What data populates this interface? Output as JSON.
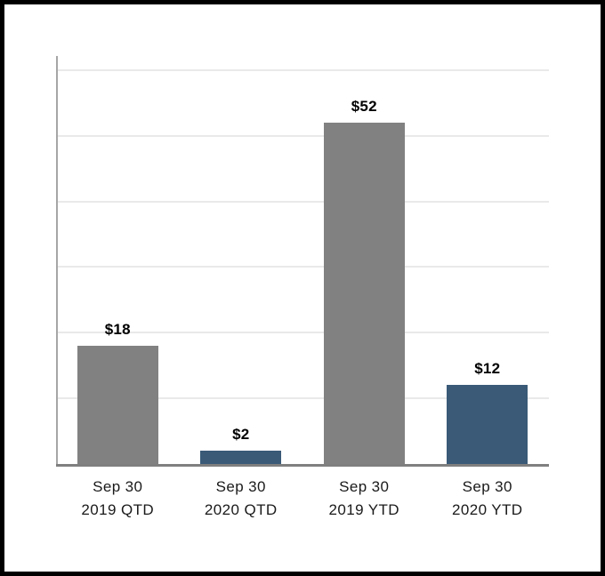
{
  "frame": {
    "border_color": "#000000",
    "background": "#FFFFFF"
  },
  "chart_data": {
    "type": "bar",
    "title": "",
    "xlabel": "",
    "ylabel": "",
    "categories": [
      "Sep 30 2019 QTD",
      "Sep 30 2020 QTD",
      "Sep 30 2019 YTD",
      "Sep 30 2020 YTD"
    ],
    "category_lines": [
      [
        "Sep 30",
        "2019 QTD"
      ],
      [
        "Sep 30",
        "2020 QTD"
      ],
      [
        "Sep 30",
        "2019 YTD"
      ],
      [
        "Sep 30",
        "2020 YTD"
      ]
    ],
    "values": [
      18,
      2,
      52,
      12
    ],
    "value_labels": [
      "$18",
      "$2",
      "$52",
      "$12"
    ],
    "bar_colors": [
      "#818181",
      "#3A5A78",
      "#818181",
      "#3A5A78"
    ],
    "ylim": [
      0,
      62
    ],
    "gridline_interval": 10,
    "grid": true,
    "legend_position": "none",
    "y_tick_labels_shown": false,
    "colors": {
      "gray_bar": "#818181",
      "blue_bar": "#3A5A78",
      "gridline": "#E9E9E9",
      "y_axis_line": "#A6A6A6",
      "x_axis_line": "#7F7F7F",
      "value_label_text": "#000000",
      "category_label_text": "#1A1A1A"
    }
  }
}
